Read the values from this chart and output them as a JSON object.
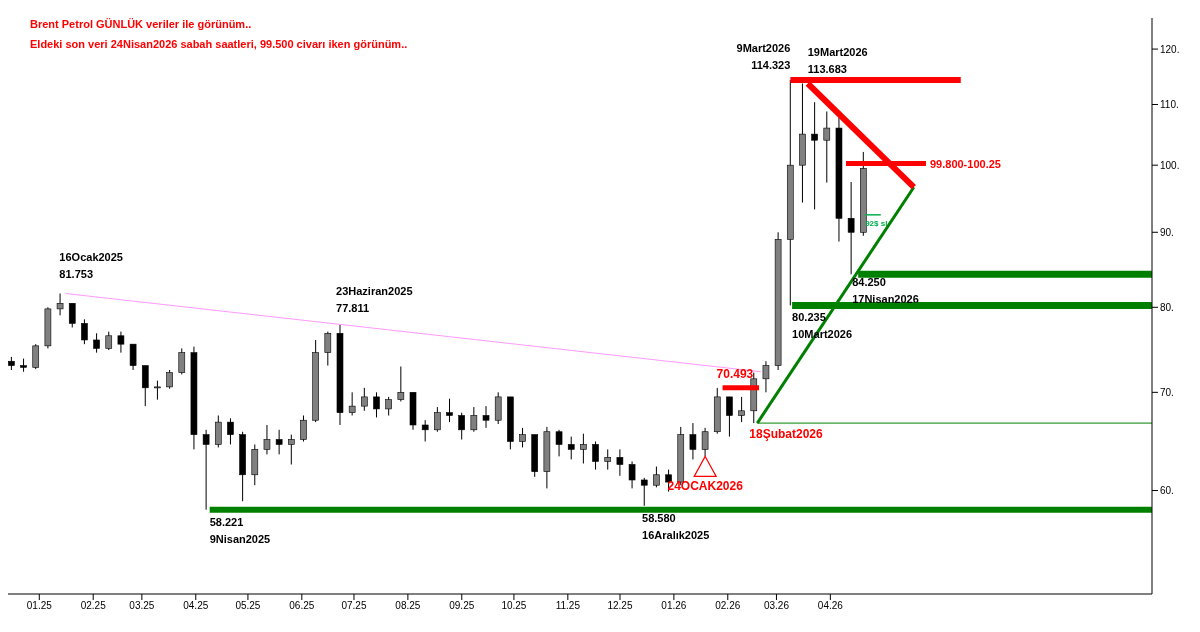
{
  "chart_data": {
    "type": "candlestick",
    "title": "Brent Petrol GÜNLÜK veriler ile görünüm..",
    "subtitle": "Eldeki son veri 24Nisan2026 sabah saatleri, 99.500 civarı iken görünüm..",
    "color": "#000000",
    "log": true,
    "x": [
      "2024-12-16",
      "2024-12-23",
      "2024-12-30",
      "2025-01-06",
      "2025-01-13",
      "2025-01-20",
      "2025-01-27",
      "2025-02-03",
      "2025-02-10",
      "2025-02-17",
      "2025-02-24",
      "2025-03-03",
      "2025-03-10",
      "2025-03-17",
      "2025-03-24",
      "2025-03-31",
      "2025-04-07",
      "2025-04-14",
      "2025-04-21",
      "2025-04-28",
      "2025-05-05",
      "2025-05-12",
      "2025-05-19",
      "2025-05-26",
      "2025-06-02",
      "2025-06-09",
      "2025-06-16",
      "2025-06-23",
      "2025-06-30",
      "2025-07-07",
      "2025-07-14",
      "2025-07-21",
      "2025-07-28",
      "2025-08-04",
      "2025-08-11",
      "2025-08-18",
      "2025-08-25",
      "2025-09-01",
      "2025-09-08",
      "2025-09-15",
      "2025-09-22",
      "2025-09-29",
      "2025-10-06",
      "2025-10-13",
      "2025-10-20",
      "2025-10-27",
      "2025-11-03",
      "2025-11-10",
      "2025-11-17",
      "2025-11-24",
      "2025-12-01",
      "2025-12-08",
      "2025-12-15",
      "2025-12-22",
      "2025-12-29",
      "2026-01-05",
      "2026-01-12",
      "2026-01-19",
      "2026-01-26",
      "2026-02-02",
      "2026-02-09",
      "2026-02-16",
      "2026-02-23",
      "2026-03-02",
      "2026-03-09",
      "2026-03-16",
      "2026-03-23",
      "2026-03-30",
      "2026-04-06",
      "2026-04-13",
      "2026-04-20"
    ],
    "ohlc": [
      [
        73.5,
        74,
        72.5,
        73
      ],
      [
        73,
        73.8,
        72.3,
        72.8
      ],
      [
        72.8,
        75.5,
        72.6,
        75.3
      ],
      [
        75.3,
        80,
        75,
        79.8
      ],
      [
        79.8,
        81.753,
        79,
        80.5
      ],
      [
        80.5,
        80.5,
        77.5,
        78
      ],
      [
        78,
        78.5,
        75.5,
        76
      ],
      [
        76,
        76.8,
        74.5,
        75
      ],
      [
        75,
        77,
        74.8,
        76.5
      ],
      [
        76.5,
        77,
        74.5,
        75.5
      ],
      [
        75.5,
        75.5,
        72.5,
        73
      ],
      [
        73,
        73,
        68.5,
        70.5
      ],
      [
        70.5,
        71.3,
        69.2,
        70.6
      ],
      [
        70.6,
        72.5,
        70.4,
        72.2
      ],
      [
        72.2,
        75,
        72,
        74.5
      ],
      [
        74.5,
        75.2,
        64,
        65.5
      ],
      [
        65.5,
        66,
        58.221,
        64.5
      ],
      [
        64.5,
        67.5,
        64.2,
        66.8
      ],
      [
        66.8,
        67.2,
        64.5,
        65.5
      ],
      [
        65.5,
        65.8,
        59,
        61.5
      ],
      [
        61.5,
        64.5,
        60.5,
        64
      ],
      [
        64,
        66.5,
        63.5,
        65
      ],
      [
        65,
        66,
        63.5,
        64.5
      ],
      [
        64.5,
        65.5,
        62.5,
        65
      ],
      [
        65,
        67.5,
        64.8,
        67
      ],
      [
        67,
        76,
        66.8,
        74.5
      ],
      [
        74.5,
        77,
        73,
        76.8
      ],
      [
        76.8,
        77.811,
        66.5,
        67.8
      ],
      [
        67.8,
        70,
        67.5,
        68.5
      ],
      [
        68.5,
        70.5,
        68,
        69.5
      ],
      [
        69.5,
        70,
        67.3,
        68.2
      ],
      [
        68.2,
        69.5,
        67.5,
        69.2
      ],
      [
        69.2,
        72.9,
        69,
        70
      ],
      [
        70,
        70,
        66,
        66.5
      ],
      [
        66.5,
        67,
        64.8,
        66
      ],
      [
        66,
        68.4,
        65.8,
        67.8
      ],
      [
        67.8,
        69.3,
        66.8,
        67.5
      ],
      [
        67.5,
        67.8,
        65,
        66
      ],
      [
        66,
        68.4,
        65.8,
        67.5
      ],
      [
        67.5,
        68.5,
        66.2,
        67
      ],
      [
        67,
        70,
        66.6,
        69.5
      ],
      [
        69.5,
        69.5,
        64,
        64.8
      ],
      [
        64.8,
        66.2,
        64.2,
        65.5
      ],
      [
        65.5,
        65.5,
        61.3,
        61.8
      ],
      [
        61.8,
        66.3,
        60.2,
        65.8
      ],
      [
        65.8,
        66,
        63.3,
        64.5
      ],
      [
        64.5,
        65.3,
        63,
        64
      ],
      [
        64,
        65.6,
        62.6,
        64.5
      ],
      [
        64.5,
        64.8,
        62,
        62.8
      ],
      [
        62.8,
        64,
        62,
        63.2
      ],
      [
        63.2,
        64,
        61.4,
        62.5
      ],
      [
        62.5,
        62.8,
        60.2,
        61
      ],
      [
        61,
        61.2,
        58.58,
        60.5
      ],
      [
        60.5,
        62.3,
        60.3,
        61.5
      ],
      [
        61.5,
        62,
        59.9,
        60.8
      ],
      [
        60.8,
        66.3,
        60.5,
        65.5
      ],
      [
        65.5,
        66.7,
        63,
        64
      ],
      [
        64,
        66.2,
        63.3,
        65.8
      ],
      [
        65.8,
        70.493,
        65.6,
        69.5
      ],
      [
        69.5,
        69.5,
        65.3,
        67.5
      ],
      [
        67.5,
        69.5,
        66.8,
        68
      ],
      [
        68,
        72.2,
        66.7,
        71.5
      ],
      [
        71.5,
        73.5,
        70,
        73
      ],
      [
        73,
        90,
        72.5,
        89
      ],
      [
        89,
        114.323,
        80.235,
        100
      ],
      [
        100,
        113.683,
        94.3,
        105
      ],
      [
        105,
        110.4,
        93.3,
        104
      ],
      [
        104,
        108.8,
        97.3,
        106
      ],
      [
        106,
        107.8,
        88.7,
        92
      ],
      [
        92,
        97.4,
        84.25,
        90
      ],
      [
        90,
        102.1,
        89.5,
        99.5
      ]
    ],
    "series": [
      {
        "type": "line",
        "color": "#ff99ff",
        "x": [
          "2025-01-16",
          "2026-02-20"
        ],
        "values": [
          81.753,
          72.3
        ]
      },
      {
        "type": "line",
        "color": "#008000",
        "x": [
          "2025-04-09",
          "2026-10-03"
        ],
        "values": [
          58.221,
          58.221
        ]
      },
      {
        "type": "line",
        "color": "#ff0000",
        "x": [
          "2026-01-29",
          "2026-02-19"
        ],
        "values": [
          70.493,
          70.493
        ]
      },
      {
        "type": "line",
        "color": "#008000",
        "x": [
          "2026-02-18",
          "2026-05-19"
        ],
        "values": [
          66.7,
          96.6
        ]
      },
      {
        "type": "line",
        "color": "#ff0000",
        "x": [
          "2026-03-19",
          "2026-05-19"
        ],
        "values": [
          113.683,
          96.6
        ]
      },
      {
        "type": "line",
        "color": "#ff0000",
        "x": [
          "2026-03-09",
          "2026-06-15"
        ],
        "values": [
          114.323,
          114.323
        ]
      },
      {
        "type": "line",
        "color": "#ff0000",
        "x": [
          "2026-04-10",
          "2026-05-26"
        ],
        "values": [
          100.25,
          100.25
        ]
      },
      {
        "type": "line",
        "color": "#008000",
        "x": [
          "2026-04-17",
          "2026-10-03"
        ],
        "values": [
          84.25,
          84.25
        ]
      },
      {
        "type": "line",
        "color": "#008000",
        "x": [
          "2026-03-10",
          "2026-10-03"
        ],
        "values": [
          80.235,
          80.235
        ]
      },
      {
        "type": "line",
        "color": "#008000",
        "x": [
          "2026-02-18",
          "2026-10-03"
        ],
        "values": [
          66.7,
          66.7
        ]
      },
      {
        "type": "line",
        "color": "#00b050",
        "x": [
          "2026-04-21",
          "2026-04-30"
        ],
        "values": [
          92.5,
          92.5
        ]
      }
    ],
    "annotations": [
      {
        "text": "16Ocak2025\n81.753",
        "x": "2025-01-16",
        "y": 81.753
      },
      {
        "text": "23Haziran2025\n77.811",
        "x": "2025-06-23",
        "y": 77.811
      },
      {
        "text": "58.221\n9Nisan2025",
        "x": "2025-04-09",
        "y": 58.221
      },
      {
        "text": "58.580\n16Aralık2025",
        "x": "2025-12-16",
        "y": 58.58
      },
      {
        "text": "9Mart2026\n114.323",
        "x": "2026-03-09",
        "y": 114.323
      },
      {
        "text": "19Mart2026\n113.683",
        "x": "2026-03-19",
        "y": 113.683
      },
      {
        "text": "80.235\n10Mart2026",
        "x": "2026-03-10",
        "y": 80.235
      },
      {
        "text": "84.250\n17Nisan2026",
        "x": "2026-04-17",
        "y": 84.25
      },
      {
        "text": "70.493",
        "x": "2026-01-29",
        "y": 70.493
      },
      {
        "text": "24OCAK2026",
        "x": "2026-01-19",
        "y": 63.3
      },
      {
        "text": "18Şubat2026",
        "x": "2026-02-18",
        "y": 66.7
      },
      {
        "text": "99.800-100.25",
        "x": "2026-05-26",
        "y": 100.25
      },
      {
        "text": "92$ sl",
        "x": "2026-04-21",
        "y": 92.5
      }
    ],
    "xlim": [
      "2024-12-14",
      "2026-10-03"
    ],
    "xticks": [
      {
        "value": "2025-01-01",
        "label": "01.25"
      },
      {
        "value": "2025-02-01",
        "label": "02.25"
      },
      {
        "value": "2025-03-01",
        "label": "03.25"
      },
      {
        "value": "2025-04-01",
        "label": "04.25"
      },
      {
        "value": "2025-05-01",
        "label": "05.25"
      },
      {
        "value": "2025-06-01",
        "label": "06.25"
      },
      {
        "value": "2025-07-01",
        "label": "07.25"
      },
      {
        "value": "2025-08-01",
        "label": "08.25"
      },
      {
        "value": "2025-09-01",
        "label": "09.25"
      },
      {
        "value": "2025-10-01",
        "label": "10.25"
      },
      {
        "value": "2025-11-01",
        "label": "11.25"
      },
      {
        "value": "2025-12-01",
        "label": "12.25"
      },
      {
        "value": "2026-01-01",
        "label": "01.26"
      },
      {
        "value": "2026-02-01",
        "label": "02.26"
      },
      {
        "value": "2026-03-01",
        "label": "03.26"
      },
      {
        "value": "2026-04-01",
        "label": "04.26"
      }
    ],
    "ylim": [
      51,
      126
    ],
    "yticks": [
      {
        "value": 60,
        "label": "60."
      },
      {
        "value": 70,
        "label": "70."
      },
      {
        "value": 80,
        "label": "80."
      },
      {
        "value": 90,
        "label": "90."
      },
      {
        "value": 100,
        "label": "100."
      },
      {
        "value": 110,
        "label": "110."
      },
      {
        "value": 120,
        "label": "120."
      }
    ]
  }
}
